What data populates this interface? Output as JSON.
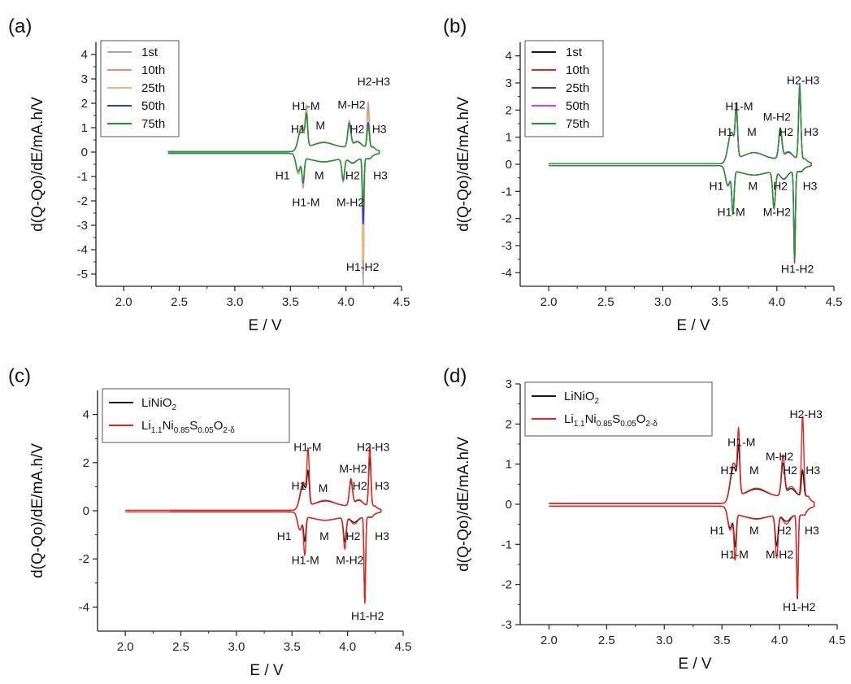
{
  "chart_data": [
    {
      "panel": "(a)",
      "type": "line",
      "xlabel": "E / V",
      "ylabel": "d(Q-Qo)/dE/mA.h/V",
      "xlim": [
        1.75,
        4.5
      ],
      "ylim": [
        -5.5,
        4.5
      ],
      "xticks": [
        2.0,
        2.5,
        3.0,
        3.5,
        4.0,
        4.5
      ],
      "yticks": [
        -5,
        -4,
        -3,
        -2,
        -1,
        0,
        1,
        2,
        3,
        4
      ],
      "legend": {
        "position": "top-left",
        "entries": [
          "1st",
          "10th",
          "25th",
          "50th",
          "75th"
        ]
      },
      "x_start": 2.4,
      "annotations": [
        {
          "text": "H1-M",
          "x": 3.64,
          "y": 1.9
        },
        {
          "text": "H1",
          "x": 3.57,
          "y": 0.95
        },
        {
          "text": "M",
          "x": 3.77,
          "y": 1.1
        },
        {
          "text": "M-H2",
          "x": 4.05,
          "y": 1.95
        },
        {
          "text": "H2-H3",
          "x": 4.25,
          "y": 2.9
        },
        {
          "text": "H2",
          "x": 4.1,
          "y": 0.95
        },
        {
          "text": "H3",
          "x": 4.3,
          "y": 0.95
        },
        {
          "text": "H1",
          "x": 3.43,
          "y": -0.95
        },
        {
          "text": "M",
          "x": 3.76,
          "y": -0.95
        },
        {
          "text": "H2",
          "x": 4.06,
          "y": -0.95
        },
        {
          "text": "H3",
          "x": 4.31,
          "y": -0.95
        },
        {
          "text": "H1-M",
          "x": 3.64,
          "y": -2.05
        },
        {
          "text": "M-H2",
          "x": 4.04,
          "y": -2.05
        },
        {
          "text": "H1-H2",
          "x": 4.15,
          "y": -4.7
        }
      ],
      "series": [
        {
          "name": "1st",
          "color": "#a9a9a9",
          "peaks": {
            "H1": 1.0,
            "H1M": 1.45,
            "MH2": 1.05,
            "H2H3": 1.85,
            "dH1": -0.8,
            "dH1M": -1.2,
            "dMH2": -0.95,
            "dH1H2": -5.2
          }
        },
        {
          "name": "10th",
          "color": "#f08878",
          "peaks": {
            "H1": 1.0,
            "H1M": 1.35,
            "MH2": 1.0,
            "H2H3": 1.6,
            "dH1": -0.75,
            "dH1M": -1.1,
            "dMH2": -0.9,
            "dH1H2": -4.6
          }
        },
        {
          "name": "25th",
          "color": "#f5b36b",
          "peaks": {
            "H1": 0.95,
            "H1M": 1.25,
            "MH2": 0.95,
            "H2H3": 1.3,
            "dH1": -0.75,
            "dH1M": -1.05,
            "dMH2": -0.85,
            "dH1H2": -4.2
          }
        },
        {
          "name": "50th",
          "color": "#2b3fe0",
          "peaks": {
            "H1": 0.9,
            "H1M": 1.15,
            "MH2": 0.95,
            "H2H3": 1.0,
            "dH1": -0.7,
            "dH1M": -1.0,
            "dMH2": -0.85,
            "dH1H2": -2.7
          }
        },
        {
          "name": "75th",
          "color": "#1f9a2a",
          "peaks": {
            "H1": 0.9,
            "H1M": 1.1,
            "MH2": 0.9,
            "H2H3": 0.85,
            "dH1": -0.7,
            "dH1M": -0.95,
            "dMH2": -0.8,
            "dH1H2": -2.0
          }
        }
      ]
    },
    {
      "panel": "(b)",
      "type": "line",
      "xlabel": "E / V",
      "ylabel": "d(Q-Qo)/dE/mA.h/V",
      "xlim": [
        1.75,
        4.5
      ],
      "ylim": [
        -4.5,
        4.5
      ],
      "xticks": [
        2.0,
        2.5,
        3.0,
        3.5,
        4.0,
        4.5
      ],
      "yticks": [
        -4,
        -3,
        -2,
        -1,
        0,
        1,
        2,
        3,
        4
      ],
      "legend": {
        "position": "top-left",
        "entries": [
          "1st",
          "10th",
          "25th",
          "50th",
          "75th"
        ]
      },
      "x_start": 2.0,
      "annotations": [
        {
          "text": "H2-H3",
          "x": 4.23,
          "y": 3.1
        },
        {
          "text": "H1-M",
          "x": 3.67,
          "y": 2.15
        },
        {
          "text": "M-H2",
          "x": 4.0,
          "y": 1.75
        },
        {
          "text": "H1",
          "x": 3.55,
          "y": 1.2
        },
        {
          "text": "M",
          "x": 3.78,
          "y": 1.2
        },
        {
          "text": "H2",
          "x": 4.08,
          "y": 1.2
        },
        {
          "text": "H3",
          "x": 4.3,
          "y": 1.2
        },
        {
          "text": "H1",
          "x": 3.47,
          "y": -0.8
        },
        {
          "text": "M",
          "x": 3.79,
          "y": -0.8
        },
        {
          "text": "H2",
          "x": 4.03,
          "y": -0.8
        },
        {
          "text": "H3",
          "x": 4.29,
          "y": -0.8
        },
        {
          "text": "H1-M",
          "x": 3.6,
          "y": -1.75
        },
        {
          "text": "M-H2",
          "x": 4.0,
          "y": -1.75
        },
        {
          "text": "H1-H2",
          "x": 4.18,
          "y": -3.85
        }
      ],
      "series": [
        {
          "name": "1st",
          "color": "#1a1a1a",
          "peaks": {
            "H1": 1.1,
            "H1M": 1.6,
            "MH2": 1.0,
            "H2H3": 2.5,
            "dH1": -0.7,
            "dH1M": -1.5,
            "dMH2": -1.3,
            "dH1H2": -3.0
          }
        },
        {
          "name": "10th",
          "color": "#e8241e",
          "peaks": {
            "H1": 1.1,
            "H1M": 1.7,
            "MH2": 1.05,
            "H2H3": 2.6,
            "dH1": -0.7,
            "dH1M": -1.55,
            "dMH2": -1.3,
            "dH1H2": -3.4
          }
        },
        {
          "name": "25th",
          "color": "#2b3fe0",
          "peaks": {
            "H1": 1.1,
            "H1M": 1.65,
            "MH2": 1.05,
            "H2H3": 2.55,
            "dH1": -0.7,
            "dH1M": -1.5,
            "dMH2": -1.3,
            "dH1H2": -3.2
          }
        },
        {
          "name": "50th",
          "color": "#e23be2",
          "peaks": {
            "H1": 1.1,
            "H1M": 1.7,
            "MH2": 1.1,
            "H2H3": 2.7,
            "dH1": -0.7,
            "dH1M": -1.6,
            "dMH2": -1.35,
            "dH1H2": -3.3
          }
        },
        {
          "name": "75th",
          "color": "#1f9a2a",
          "peaks": {
            "H1": 1.1,
            "H1M": 1.75,
            "MH2": 1.1,
            "H2H3": 2.75,
            "dH1": -0.7,
            "dH1M": -1.6,
            "dMH2": -1.35,
            "dH1H2": -3.3
          }
        }
      ]
    },
    {
      "panel": "(c)",
      "type": "line",
      "xlabel": "E / V",
      "ylabel": "d(Q-Qo)/dE/mA.h/V",
      "xlim": [
        1.75,
        4.5
      ],
      "ylim": [
        -5,
        5
      ],
      "xticks": [
        2.0,
        2.5,
        3.0,
        3.5,
        4.0,
        4.5
      ],
      "yticks": [
        -4,
        -2,
        0,
        2,
        4
      ],
      "legend": {
        "position": "top-left",
        "entries": [
          {
            "base": "LiNiO",
            "sub": "2",
            "full": "LiNiO2"
          },
          {
            "full": "Li1.1Ni0.85S0.05O2-δ",
            "parts": [
              [
                "Li",
                ""
              ],
              [
                "1.1",
                "sub"
              ],
              [
                "Ni",
                ""
              ],
              [
                "0.85",
                "sub"
              ],
              [
                "S",
                ""
              ],
              [
                "0.05",
                "sub"
              ],
              [
                "O",
                ""
              ],
              [
                "2-δ",
                "sub"
              ]
            ]
          }
        ]
      },
      "annotations": [
        {
          "text": "H1-M",
          "x": 3.64,
          "y": 2.65
        },
        {
          "text": "H2-H3",
          "x": 4.23,
          "y": 2.65
        },
        {
          "text": "M-H2",
          "x": 4.05,
          "y": 1.75
        },
        {
          "text": "H1",
          "x": 3.56,
          "y": 1.05
        },
        {
          "text": "M",
          "x": 3.78,
          "y": 0.95
        },
        {
          "text": "H2",
          "x": 4.11,
          "y": 1.05
        },
        {
          "text": "H3",
          "x": 4.31,
          "y": 1.05
        },
        {
          "text": "H1",
          "x": 3.43,
          "y": -1.05
        },
        {
          "text": "M",
          "x": 3.79,
          "y": -1.05
        },
        {
          "text": "H2",
          "x": 4.05,
          "y": -1.05
        },
        {
          "text": "H3",
          "x": 4.31,
          "y": -1.05
        },
        {
          "text": "H1-M",
          "x": 3.62,
          "y": -2.05
        },
        {
          "text": "M-H2",
          "x": 4.02,
          "y": -2.05
        },
        {
          "text": "H1-H2",
          "x": 4.18,
          "y": -4.35
        }
      ],
      "series": [
        {
          "name": "LiNiO2",
          "color": "#1a1a1a",
          "x_start": 2.4,
          "peaks": {
            "H1": 1.0,
            "H1M": 1.2,
            "MH2": 1.0,
            "H2H3": 2.0,
            "dH1": -0.7,
            "dH1M": -1.0,
            "dMH2": -1.0,
            "dH1H2": -3.5
          }
        },
        {
          "name": "Li1.1Ni0.85S0.05O2-δ",
          "color": "#e8241e",
          "x_start": 2.0,
          "peaks": {
            "H1": 1.1,
            "H1M": 2.1,
            "MH2": 1.1,
            "H2H3": 2.5,
            "dH1": -0.7,
            "dH1M": -1.6,
            "dMH2": -1.3,
            "dH1H2": -3.6
          }
        }
      ]
    },
    {
      "panel": "(d)",
      "type": "line",
      "xlabel": "E / V",
      "ylabel": "d(Q-Qo)/dE/mA.h/V",
      "xlim": [
        1.75,
        4.5
      ],
      "ylim": [
        -3,
        3
      ],
      "xticks": [
        2.0,
        2.5,
        3.0,
        3.5,
        4.0,
        4.5
      ],
      "yticks": [
        -3,
        -2,
        -1,
        0,
        1,
        2,
        3
      ],
      "legend": {
        "position": "top-left",
        "entries": [
          {
            "base": "LiNiO",
            "sub": "2",
            "full": "LiNiO2"
          },
          {
            "full": "Li1.1Ni0.85S0.05O2-δ",
            "parts": [
              [
                "Li",
                ""
              ],
              [
                "1.1",
                "sub"
              ],
              [
                "Ni",
                ""
              ],
              [
                "0.85",
                "sub"
              ],
              [
                "S",
                ""
              ],
              [
                "0.05",
                "sub"
              ],
              [
                "O",
                ""
              ],
              [
                "2-δ",
                "sub"
              ]
            ]
          }
        ]
      },
      "annotations": [
        {
          "text": "H2-H3",
          "x": 4.23,
          "y": 2.25
        },
        {
          "text": "H1-M",
          "x": 3.67,
          "y": 1.55
        },
        {
          "text": "M-H2",
          "x": 4.0,
          "y": 1.2
        },
        {
          "text": "H1",
          "x": 3.55,
          "y": 0.85
        },
        {
          "text": "M",
          "x": 3.78,
          "y": 0.85
        },
        {
          "text": "H2",
          "x": 4.09,
          "y": 0.85
        },
        {
          "text": "H3",
          "x": 4.29,
          "y": 0.85
        },
        {
          "text": "H1",
          "x": 3.46,
          "y": -0.65
        },
        {
          "text": "M",
          "x": 3.78,
          "y": -0.65
        },
        {
          "text": "H2",
          "x": 4.04,
          "y": -0.65
        },
        {
          "text": "H3",
          "x": 4.28,
          "y": -0.65
        },
        {
          "text": "H1-M",
          "x": 3.61,
          "y": -1.25
        },
        {
          "text": "M-H2",
          "x": 4.0,
          "y": -1.25
        },
        {
          "text": "H1-H2",
          "x": 4.17,
          "y": -2.55
        }
      ],
      "series": [
        {
          "name": "LiNiO2",
          "color": "#1a1a1a",
          "x_start": 2.0,
          "peaks": {
            "H1": 0.85,
            "H1M": 1.05,
            "MH2": 0.8,
            "H2H3": 0.65,
            "dH1": -0.5,
            "dH1M": -0.8,
            "dMH2": -0.75,
            "dH1H2": -2.1
          }
        },
        {
          "name": "Li1.1Ni0.85S0.05O2-δ",
          "color": "#e8241e",
          "x_start": 2.0,
          "peaks": {
            "H1": 0.95,
            "H1M": 1.45,
            "MH2": 1.0,
            "H2H3": 2.0,
            "dH1": -0.55,
            "dH1M": -1.15,
            "dMH2": -1.05,
            "dH1H2": -2.05
          }
        }
      ]
    }
  ]
}
